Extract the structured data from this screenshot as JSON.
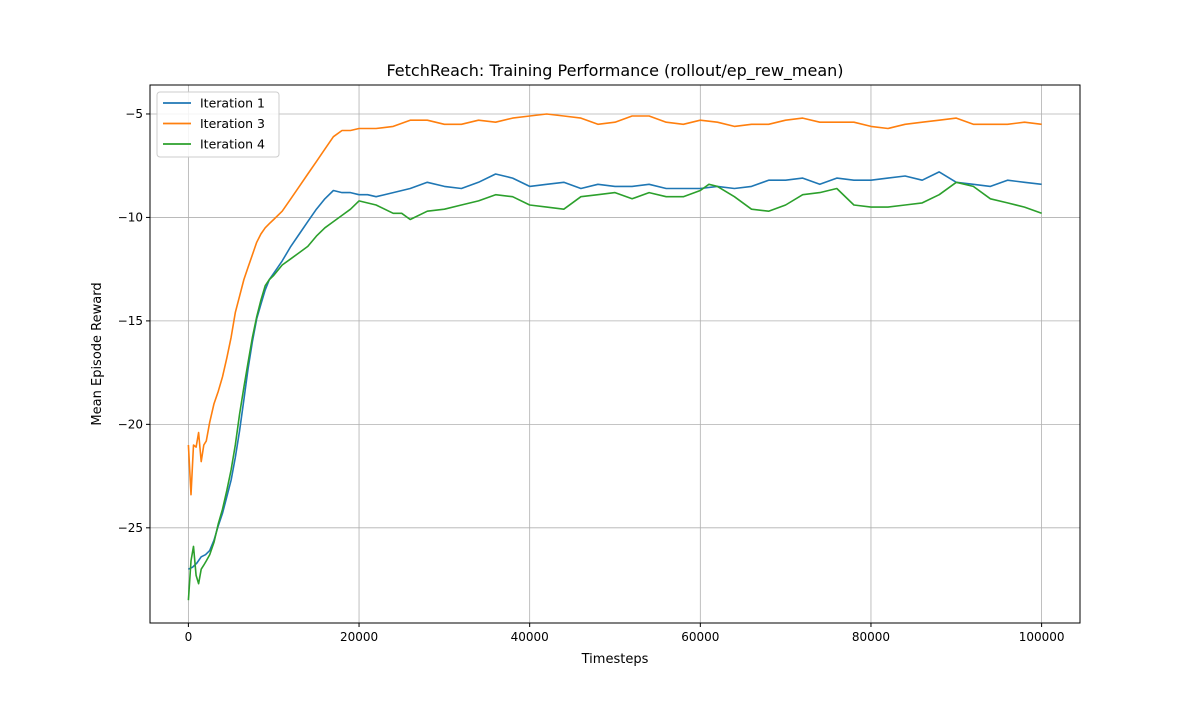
{
  "chart_data": {
    "type": "line",
    "title": "FetchReach: Training Performance (rollout/ep_rew_mean)",
    "xlabel": "Timesteps",
    "ylabel": "Mean Episode Reward",
    "xlim": [
      -4500,
      104500
    ],
    "ylim": [
      -29.6,
      -3.6
    ],
    "xticks": [
      0,
      20000,
      40000,
      60000,
      80000,
      100000
    ],
    "xtick_labels": [
      "0",
      "20000",
      "40000",
      "60000",
      "80000",
      "100000"
    ],
    "yticks": [
      -25,
      -20,
      -15,
      -10,
      -5
    ],
    "ytick_labels": [
      "−25",
      "−20",
      "−15",
      "−10",
      "−5"
    ],
    "grid": true,
    "legend_position": "upper-left",
    "series": [
      {
        "name": "Iteration 1",
        "color": "#1f77b4",
        "x": [
          0,
          500,
          1000,
          1500,
          2000,
          2500,
          3000,
          3500,
          4000,
          4500,
          5000,
          5500,
          6000,
          6500,
          7000,
          7500,
          8000,
          8500,
          9000,
          9500,
          10000,
          11000,
          12000,
          13000,
          14000,
          15000,
          16000,
          17000,
          18000,
          19000,
          20000,
          21000,
          22000,
          24000,
          26000,
          28000,
          30000,
          32000,
          34000,
          36000,
          38000,
          40000,
          42000,
          44000,
          46000,
          48000,
          50000,
          52000,
          54000,
          56000,
          58000,
          60000,
          62000,
          64000,
          66000,
          68000,
          70000,
          72000,
          74000,
          76000,
          78000,
          80000,
          82000,
          84000,
          86000,
          88000,
          90000,
          92000,
          94000,
          96000,
          98000,
          100000
        ],
        "y": [
          -27.0,
          -26.9,
          -26.7,
          -26.4,
          -26.3,
          -26.1,
          -25.6,
          -24.9,
          -24.3,
          -23.5,
          -22.7,
          -21.6,
          -20.3,
          -18.8,
          -17.3,
          -16.0,
          -14.9,
          -14.2,
          -13.5,
          -13.0,
          -12.7,
          -12.1,
          -11.4,
          -10.8,
          -10.2,
          -9.6,
          -9.1,
          -8.7,
          -8.8,
          -8.8,
          -8.9,
          -8.9,
          -9.0,
          -8.8,
          -8.6,
          -8.3,
          -8.5,
          -8.6,
          -8.3,
          -7.9,
          -8.1,
          -8.5,
          -8.4,
          -8.3,
          -8.6,
          -8.4,
          -8.5,
          -8.5,
          -8.4,
          -8.6,
          -8.6,
          -8.6,
          -8.5,
          -8.6,
          -8.5,
          -8.2,
          -8.2,
          -8.1,
          -8.4,
          -8.1,
          -8.2,
          -8.2,
          -8.1,
          -8.0,
          -8.2,
          -7.8,
          -8.3,
          -8.4,
          -8.5,
          -8.2,
          -8.3,
          -8.4
        ]
      },
      {
        "name": "Iteration 3",
        "color": "#ff7f0e",
        "x": [
          0,
          300,
          600,
          900,
          1200,
          1500,
          1800,
          2100,
          2500,
          3000,
          3500,
          4000,
          4500,
          5000,
          5500,
          6000,
          6500,
          7000,
          7500,
          8000,
          8500,
          9000,
          9500,
          10000,
          11000,
          12000,
          13000,
          14000,
          15000,
          16000,
          17000,
          18000,
          19000,
          20000,
          22000,
          24000,
          26000,
          28000,
          30000,
          32000,
          34000,
          36000,
          38000,
          40000,
          42000,
          44000,
          46000,
          48000,
          50000,
          52000,
          54000,
          56000,
          58000,
          60000,
          62000,
          64000,
          66000,
          68000,
          70000,
          72000,
          74000,
          76000,
          78000,
          80000,
          82000,
          84000,
          86000,
          88000,
          90000,
          92000,
          94000,
          96000,
          98000,
          100000
        ],
        "y": [
          -21.0,
          -23.4,
          -21.0,
          -21.1,
          -20.4,
          -21.8,
          -21.0,
          -20.8,
          -19.9,
          -19.0,
          -18.4,
          -17.7,
          -16.8,
          -15.8,
          -14.6,
          -13.8,
          -13.0,
          -12.4,
          -11.8,
          -11.2,
          -10.8,
          -10.5,
          -10.3,
          -10.1,
          -9.7,
          -9.1,
          -8.5,
          -7.9,
          -7.3,
          -6.7,
          -6.1,
          -5.8,
          -5.8,
          -5.7,
          -5.7,
          -5.6,
          -5.3,
          -5.3,
          -5.5,
          -5.5,
          -5.3,
          -5.4,
          -5.2,
          -5.1,
          -5.0,
          -5.1,
          -5.2,
          -5.5,
          -5.4,
          -5.1,
          -5.1,
          -5.4,
          -5.5,
          -5.3,
          -5.4,
          -5.6,
          -5.5,
          -5.5,
          -5.3,
          -5.2,
          -5.4,
          -5.4,
          -5.4,
          -5.6,
          -5.7,
          -5.5,
          -5.4,
          -5.3,
          -5.2,
          -5.5,
          -5.5,
          -5.5,
          -5.4,
          -5.5
        ]
      },
      {
        "name": "Iteration 4",
        "color": "#2ca02c",
        "x": [
          0,
          300,
          600,
          900,
          1200,
          1500,
          1800,
          2100,
          2500,
          3000,
          3500,
          4000,
          4500,
          5000,
          5500,
          6000,
          6500,
          7000,
          7500,
          8000,
          8500,
          9000,
          9500,
          10000,
          11000,
          12000,
          13000,
          14000,
          15000,
          16000,
          17000,
          18000,
          19000,
          20000,
          22000,
          24000,
          25000,
          26000,
          28000,
          30000,
          32000,
          34000,
          36000,
          38000,
          40000,
          42000,
          44000,
          46000,
          48000,
          50000,
          52000,
          54000,
          56000,
          58000,
          60000,
          61000,
          62000,
          64000,
          66000,
          68000,
          70000,
          72000,
          74000,
          76000,
          78000,
          80000,
          82000,
          84000,
          86000,
          88000,
          90000,
          92000,
          94000,
          96000,
          98000,
          100000
        ],
        "y": [
          -28.5,
          -26.6,
          -25.9,
          -27.3,
          -27.7,
          -27.0,
          -26.8,
          -26.6,
          -26.3,
          -25.7,
          -24.8,
          -24.1,
          -23.2,
          -22.2,
          -21.0,
          -19.5,
          -18.2,
          -17.0,
          -15.8,
          -14.8,
          -14.0,
          -13.3,
          -13.0,
          -12.8,
          -12.3,
          -12.0,
          -11.7,
          -11.4,
          -10.9,
          -10.5,
          -10.2,
          -9.9,
          -9.6,
          -9.2,
          -9.4,
          -9.8,
          -9.8,
          -10.1,
          -9.7,
          -9.6,
          -9.4,
          -9.2,
          -8.9,
          -9.0,
          -9.4,
          -9.5,
          -9.6,
          -9.0,
          -8.9,
          -8.8,
          -9.1,
          -8.8,
          -9.0,
          -9.0,
          -8.7,
          -8.4,
          -8.5,
          -9.0,
          -9.6,
          -9.7,
          -9.4,
          -8.9,
          -8.8,
          -8.6,
          -9.4,
          -9.5,
          -9.5,
          -9.4,
          -9.3,
          -8.9,
          -8.3,
          -8.5,
          -9.1,
          -9.3,
          -9.5,
          -9.8
        ]
      }
    ]
  }
}
